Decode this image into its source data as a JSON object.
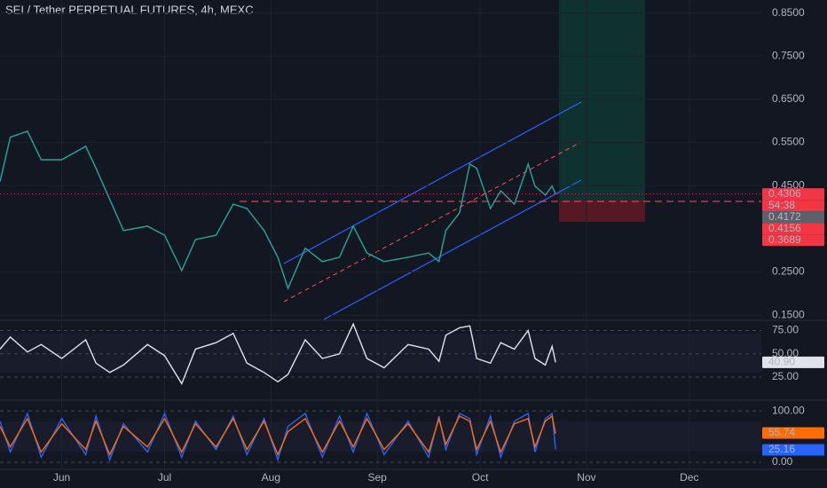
{
  "chart_data": [
    {
      "type": "line",
      "title": "SEI / Tether PERPETUAL FUTURES, 4h, MEXC",
      "color": "#26a69a",
      "x": [
        13,
        16,
        21,
        25,
        31,
        38,
        41,
        45,
        49,
        56,
        61,
        66,
        70,
        76,
        81,
        85,
        90,
        94,
        97,
        102,
        107,
        112,
        116,
        120,
        125,
        132,
        138,
        141,
        143,
        147,
        150,
        152,
        156,
        159,
        163,
        167,
        169,
        172,
        174,
        175
      ],
      "values": [
        0.459,
        0.562,
        0.576,
        0.51,
        0.51,
        0.541,
        0.49,
        0.418,
        0.346,
        0.356,
        0.335,
        0.253,
        0.325,
        0.335,
        0.407,
        0.397,
        0.346,
        0.284,
        0.212,
        0.305,
        0.274,
        0.284,
        0.356,
        0.294,
        0.274,
        0.284,
        0.294,
        0.274,
        0.346,
        0.387,
        0.5,
        0.49,
        0.397,
        0.438,
        0.407,
        0.5,
        0.449,
        0.428,
        0.449,
        0.4306
      ],
      "xlim": [
        13,
        235
      ],
      "xticks": [
        {
          "value": 31,
          "label": "Jun"
        },
        {
          "value": 61,
          "label": "Jul"
        },
        {
          "value": 92,
          "label": "Aug"
        },
        {
          "value": 123,
          "label": "Sep"
        },
        {
          "value": 153,
          "label": "Oct"
        },
        {
          "value": 184,
          "label": "Nov"
        },
        {
          "value": 214,
          "label": "Dec"
        }
      ],
      "ylim": [
        0.14,
        0.88
      ],
      "yticks": [
        {
          "value": 0.85,
          "label": "0.8500"
        },
        {
          "value": 0.75,
          "label": "0.7500"
        },
        {
          "value": 0.65,
          "label": "0.6500"
        },
        {
          "value": 0.55,
          "label": "0.5500"
        },
        {
          "value": 0.45,
          "label": "0.4500"
        },
        {
          "value": 0.25,
          "label": "0.2500"
        },
        {
          "value": 0.15,
          "label": "0.1500"
        }
      ],
      "price_labels": [
        {
          "text": "0.4306",
          "color": "#f23645"
        },
        {
          "text": "54:38",
          "color": "#f23645"
        },
        {
          "text": "0.4172",
          "color": "#5d606b"
        },
        {
          "text": "0.4156",
          "color": "#f23645"
        },
        {
          "text": "0.3689",
          "color": "#f23645"
        }
      ]
    },
    {
      "type": "line",
      "color": "#e0e3eb",
      "values": [
        55,
        68,
        52,
        60,
        45,
        65,
        40,
        30,
        38,
        60,
        48,
        18,
        55,
        62,
        72,
        40,
        30,
        20,
        28,
        65,
        45,
        50,
        82,
        45,
        35,
        60,
        55,
        42,
        70,
        78,
        80,
        45,
        40,
        62,
        55,
        75,
        45,
        38,
        58,
        40.9
      ],
      "ylim": [
        6,
        85
      ],
      "yticks": [
        {
          "value": 75,
          "label": "75.00"
        },
        {
          "value": 50,
          "label": "50.00"
        },
        {
          "value": 25,
          "label": "25.00"
        }
      ],
      "badge": {
        "text": "40.90",
        "color": "#e0e3eb"
      }
    },
    {
      "type": "line",
      "series": [
        {
          "color": "#2962ff",
          "values": [
            80,
            20,
            95,
            10,
            85,
            15,
            90,
            5,
            75,
            20,
            95,
            10,
            80,
            25,
            90,
            15,
            85,
            5,
            70,
            95,
            10,
            90,
            20,
            95,
            15,
            80,
            10,
            90,
            25,
            95,
            85,
            15,
            90,
            10,
            80,
            95,
            20,
            85,
            95,
            25.16
          ],
          "badge": "25.16"
        },
        {
          "color": "#ff6d00",
          "values": [
            70,
            30,
            85,
            20,
            75,
            25,
            80,
            15,
            70,
            30,
            85,
            20,
            75,
            30,
            85,
            25,
            80,
            15,
            60,
            85,
            20,
            80,
            30,
            85,
            25,
            75,
            20,
            85,
            35,
            90,
            80,
            25,
            80,
            20,
            75,
            85,
            30,
            80,
            90,
            55.74
          ],
          "badge": "55.74"
        }
      ],
      "ylim": [
        -12,
        114
      ],
      "yticks": [
        {
          "value": 100,
          "label": "100.00"
        },
        {
          "value": 0,
          "label": "0.00"
        }
      ]
    }
  ]
}
